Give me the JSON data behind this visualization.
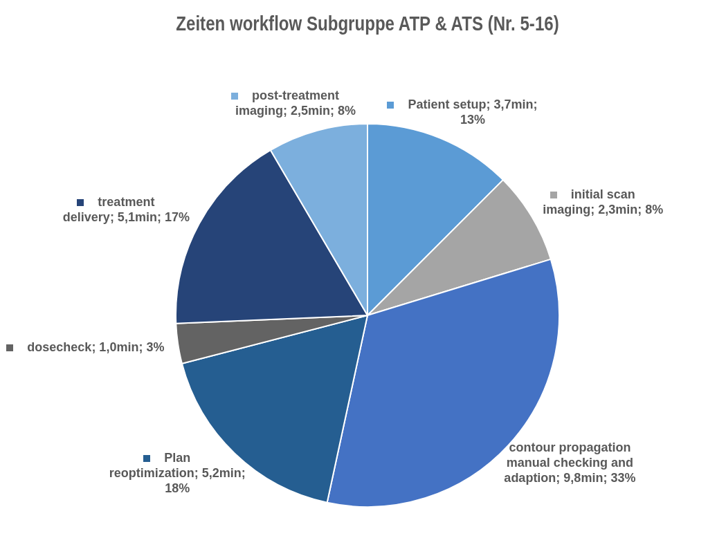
{
  "chart_data": {
    "type": "pie",
    "title": "Zeiten workflow Subgruppe ATP & ATS (Nr. 5-16)",
    "categories": [
      "Patient setup",
      "initial scan imaging",
      "contour propagation manual checking and adaption",
      "Plan reoptimization",
      "dosecheck",
      "treatment delivery",
      "post-treatment imaging"
    ],
    "values": [
      3.7,
      2.3,
      9.8,
      5.2,
      1.0,
      5.1,
      2.5
    ],
    "value_labels": [
      "3,7min; 13%",
      "2,3min; 8%",
      "9,8min; 33%",
      "5,2min; 18%",
      "1,0min; 3%",
      "5,1min; 17%",
      "2,5min; 8%"
    ],
    "colors": [
      "#5b9bd5",
      "#a5a5a5",
      "#4472c4",
      "#255e91",
      "#636363",
      "#264478",
      "#7cafdd"
    ],
    "legend": true
  }
}
